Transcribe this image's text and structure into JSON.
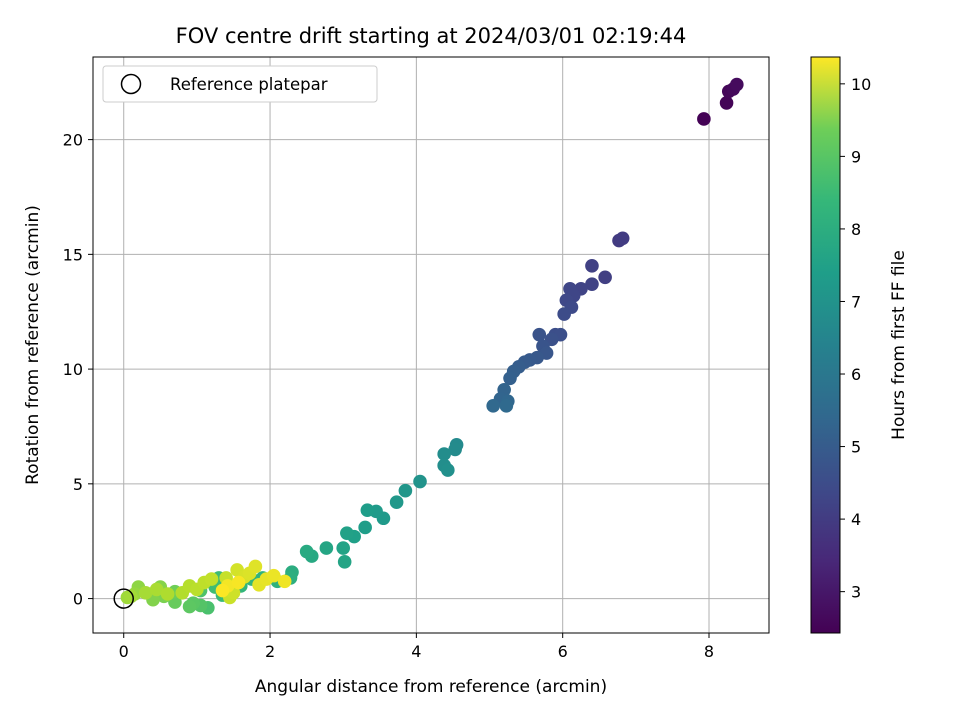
{
  "chart_data": {
    "type": "scatter",
    "title": "FOV centre drift starting at 2024/03/01 02:19:44",
    "xlabel": "Angular distance from reference (arcmin)",
    "ylabel": "Rotation from reference (arcmin)",
    "xlim": [
      -0.42,
      8.82
    ],
    "ylim": [
      -1.5,
      23.6
    ],
    "xticks": [
      "0",
      "2",
      "4",
      "6",
      "8"
    ],
    "yticks": [
      "0",
      "5",
      "10",
      "15",
      "20"
    ],
    "grid": true,
    "legend": {
      "placement": "top-left",
      "entries": [
        "Reference platepar"
      ]
    },
    "reference_point": {
      "x": 0,
      "y": 0
    },
    "colorbar": {
      "label": "Hours from first FF file",
      "range": [
        2.43,
        10.37
      ],
      "ticks": [
        "3",
        "4",
        "5",
        "6",
        "7",
        "8",
        "9",
        "10"
      ],
      "colormap": "viridis"
    },
    "points": [
      {
        "x": 7.93,
        "y": 20.9,
        "h": 2.45
      },
      {
        "x": 8.24,
        "y": 21.6,
        "h": 2.5
      },
      {
        "x": 8.27,
        "y": 22.1,
        "h": 2.55
      },
      {
        "x": 8.33,
        "y": 22.2,
        "h": 2.6
      },
      {
        "x": 8.38,
        "y": 22.4,
        "h": 2.65
      },
      {
        "x": 6.77,
        "y": 15.6,
        "h": 3.8
      },
      {
        "x": 6.82,
        "y": 15.7,
        "h": 3.82
      },
      {
        "x": 6.58,
        "y": 14.0,
        "h": 3.9
      },
      {
        "x": 6.4,
        "y": 14.5,
        "h": 3.95
      },
      {
        "x": 6.4,
        "y": 13.7,
        "h": 4.0
      },
      {
        "x": 6.25,
        "y": 13.5,
        "h": 4.05
      },
      {
        "x": 6.1,
        "y": 13.5,
        "h": 4.1
      },
      {
        "x": 6.15,
        "y": 13.2,
        "h": 4.1
      },
      {
        "x": 6.05,
        "y": 13.0,
        "h": 4.15
      },
      {
        "x": 6.12,
        "y": 12.7,
        "h": 4.2
      },
      {
        "x": 6.02,
        "y": 12.4,
        "h": 4.25
      },
      {
        "x": 5.9,
        "y": 11.5,
        "h": 4.3
      },
      {
        "x": 5.97,
        "y": 11.5,
        "h": 4.35
      },
      {
        "x": 5.85,
        "y": 11.3,
        "h": 4.4
      },
      {
        "x": 5.68,
        "y": 11.5,
        "h": 4.45
      },
      {
        "x": 5.73,
        "y": 11.0,
        "h": 4.5
      },
      {
        "x": 5.78,
        "y": 10.7,
        "h": 4.55
      },
      {
        "x": 5.65,
        "y": 10.5,
        "h": 4.6
      },
      {
        "x": 5.55,
        "y": 10.4,
        "h": 4.65
      },
      {
        "x": 5.48,
        "y": 10.3,
        "h": 4.7
      },
      {
        "x": 5.4,
        "y": 10.1,
        "h": 4.75
      },
      {
        "x": 5.33,
        "y": 9.9,
        "h": 4.8
      },
      {
        "x": 5.28,
        "y": 9.6,
        "h": 4.85
      },
      {
        "x": 5.2,
        "y": 9.1,
        "h": 4.95
      },
      {
        "x": 5.15,
        "y": 8.7,
        "h": 5.0
      },
      {
        "x": 5.25,
        "y": 8.6,
        "h": 5.05
      },
      {
        "x": 5.05,
        "y": 8.4,
        "h": 5.1
      },
      {
        "x": 5.23,
        "y": 8.4,
        "h": 5.15
      },
      {
        "x": 4.55,
        "y": 6.7,
        "h": 6.2
      },
      {
        "x": 4.53,
        "y": 6.5,
        "h": 6.25
      },
      {
        "x": 4.38,
        "y": 6.3,
        "h": 6.3
      },
      {
        "x": 4.38,
        "y": 5.8,
        "h": 6.35
      },
      {
        "x": 4.43,
        "y": 5.6,
        "h": 6.4
      },
      {
        "x": 4.05,
        "y": 5.1,
        "h": 6.5
      },
      {
        "x": 3.85,
        "y": 4.7,
        "h": 6.6
      },
      {
        "x": 3.73,
        "y": 4.2,
        "h": 6.65
      },
      {
        "x": 3.55,
        "y": 3.5,
        "h": 6.7
      },
      {
        "x": 3.45,
        "y": 3.8,
        "h": 6.75
      },
      {
        "x": 3.33,
        "y": 3.85,
        "h": 6.8
      },
      {
        "x": 3.3,
        "y": 3.1,
        "h": 6.85
      },
      {
        "x": 3.15,
        "y": 2.7,
        "h": 6.9
      },
      {
        "x": 3.05,
        "y": 2.85,
        "h": 6.95
      },
      {
        "x": 3.0,
        "y": 2.2,
        "h": 7.0
      },
      {
        "x": 3.02,
        "y": 1.6,
        "h": 7.05
      },
      {
        "x": 2.77,
        "y": 2.2,
        "h": 7.1
      },
      {
        "x": 2.57,
        "y": 1.85,
        "h": 7.2
      },
      {
        "x": 2.5,
        "y": 2.05,
        "h": 7.25
      },
      {
        "x": 2.3,
        "y": 1.15,
        "h": 7.35
      },
      {
        "x": 2.28,
        "y": 0.9,
        "h": 7.4
      },
      {
        "x": 2.1,
        "y": 0.75,
        "h": 7.5
      },
      {
        "x": 1.9,
        "y": 0.9,
        "h": 7.55
      },
      {
        "x": 1.75,
        "y": 0.85,
        "h": 7.6
      },
      {
        "x": 1.6,
        "y": 0.55,
        "h": 7.65
      },
      {
        "x": 1.5,
        "y": 0.4,
        "h": 7.7
      },
      {
        "x": 1.35,
        "y": 0.15,
        "h": 7.8
      },
      {
        "x": 1.3,
        "y": 0.9,
        "h": 7.85
      },
      {
        "x": 1.25,
        "y": 0.5,
        "h": 7.9
      },
      {
        "x": 1.15,
        "y": -0.4,
        "h": 8.05
      },
      {
        "x": 1.05,
        "y": 0.35,
        "h": 8.1
      },
      {
        "x": 1.05,
        "y": -0.3,
        "h": 8.2
      },
      {
        "x": 0.95,
        "y": -0.2,
        "h": 8.3
      },
      {
        "x": 0.9,
        "y": -0.35,
        "h": 8.35
      },
      {
        "x": 0.7,
        "y": -0.15,
        "h": 8.5
      },
      {
        "x": 0.7,
        "y": 0.3,
        "h": 8.6
      },
      {
        "x": 0.55,
        "y": 0.1,
        "h": 8.75
      },
      {
        "x": 0.4,
        "y": -0.05,
        "h": 8.85
      },
      {
        "x": 0.5,
        "y": 0.5,
        "h": 8.9
      },
      {
        "x": 0.2,
        "y": 0.5,
        "h": 9.0
      },
      {
        "x": 0.15,
        "y": 0.2,
        "h": 9.1
      },
      {
        "x": 0.05,
        "y": 0.05,
        "h": 9.2
      },
      {
        "x": 0.1,
        "y": 0.1,
        "h": 9.25
      },
      {
        "x": 0.3,
        "y": 0.25,
        "h": 9.3
      },
      {
        "x": 0.45,
        "y": 0.4,
        "h": 9.35
      },
      {
        "x": 0.6,
        "y": 0.2,
        "h": 9.4
      },
      {
        "x": 0.8,
        "y": 0.25,
        "h": 9.45
      },
      {
        "x": 0.9,
        "y": 0.55,
        "h": 9.5
      },
      {
        "x": 1.0,
        "y": 0.4,
        "h": 9.55
      },
      {
        "x": 1.1,
        "y": 0.7,
        "h": 9.6
      },
      {
        "x": 1.2,
        "y": 0.85,
        "h": 9.65
      },
      {
        "x": 1.4,
        "y": 0.9,
        "h": 9.7
      },
      {
        "x": 1.45,
        "y": 0.05,
        "h": 9.75
      },
      {
        "x": 1.5,
        "y": 0.25,
        "h": 9.8
      },
      {
        "x": 1.55,
        "y": 1.25,
        "h": 9.85
      },
      {
        "x": 1.65,
        "y": 0.95,
        "h": 9.9
      },
      {
        "x": 1.72,
        "y": 1.1,
        "h": 9.95
      },
      {
        "x": 1.8,
        "y": 1.4,
        "h": 10.0
      },
      {
        "x": 1.85,
        "y": 0.6,
        "h": 10.05
      },
      {
        "x": 1.95,
        "y": 0.85,
        "h": 10.1
      },
      {
        "x": 2.05,
        "y": 1.0,
        "h": 10.15
      },
      {
        "x": 2.2,
        "y": 0.75,
        "h": 10.2
      },
      {
        "x": 1.42,
        "y": 0.55,
        "h": 10.25
      },
      {
        "x": 1.57,
        "y": 0.7,
        "h": 10.3
      },
      {
        "x": 1.35,
        "y": 0.35,
        "h": 10.35
      }
    ]
  }
}
